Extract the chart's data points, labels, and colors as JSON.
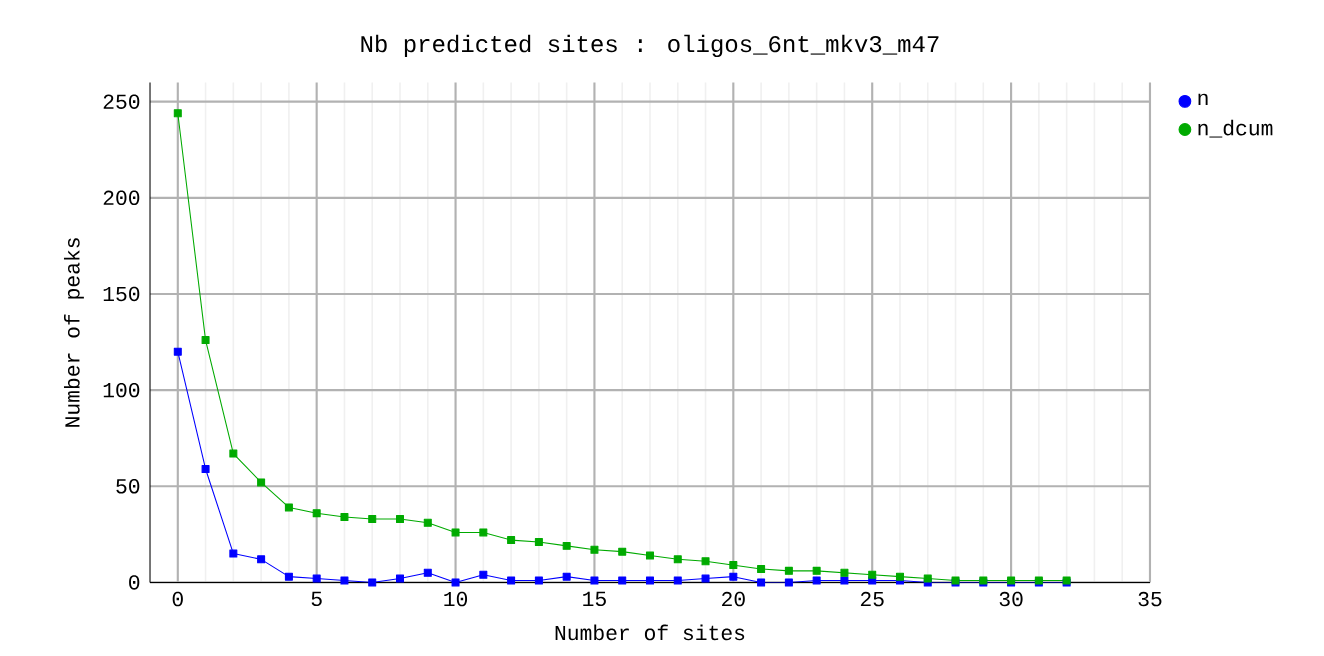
{
  "chart_data": {
    "type": "line",
    "title": "Nb predicted sites : oligos_6nt_mkv3_m47",
    "xlabel": "Number of sites",
    "ylabel": "Number of peaks",
    "x": [
      0,
      1,
      2,
      3,
      4,
      5,
      6,
      7,
      8,
      9,
      10,
      11,
      12,
      13,
      14,
      15,
      16,
      17,
      18,
      19,
      20,
      21,
      22,
      23,
      24,
      25,
      26,
      27,
      28,
      29,
      30,
      31,
      32
    ],
    "series": [
      {
        "name": "n",
        "color": "#0000ff",
        "values": [
          120,
          59,
          15,
          12,
          3,
          2,
          1,
          0,
          2,
          5,
          0,
          4,
          1,
          1,
          3,
          1,
          1,
          1,
          1,
          2,
          3,
          0,
          0,
          1,
          1,
          1,
          1,
          0,
          0,
          0,
          0,
          0,
          0
        ]
      },
      {
        "name": "n_dcum",
        "color": "#00aa00",
        "values": [
          244,
          126,
          67,
          52,
          39,
          36,
          34,
          33,
          33,
          31,
          26,
          26,
          22,
          21,
          19,
          17,
          16,
          14,
          12,
          11,
          9,
          7,
          6,
          6,
          5,
          4,
          3,
          2,
          1,
          1,
          1,
          1,
          1
        ]
      }
    ],
    "xlim": [
      -1,
      35
    ],
    "ylim": [
      0,
      260
    ],
    "xticks": [
      0,
      5,
      10,
      15,
      20,
      25,
      30,
      35
    ],
    "yticks": [
      0,
      50,
      100,
      150,
      200,
      250
    ],
    "grid": true,
    "legend": "right",
    "marker": "square",
    "line_style": "solid"
  }
}
